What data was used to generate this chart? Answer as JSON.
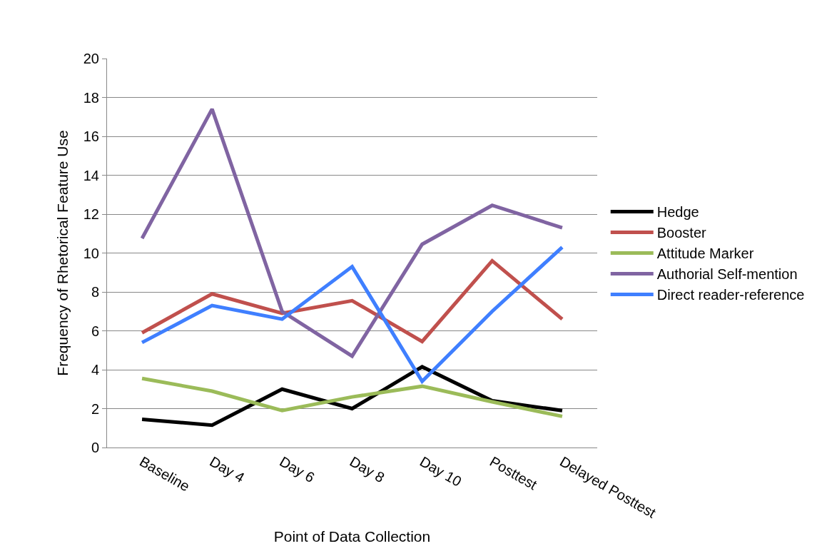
{
  "chart_data": {
    "type": "line",
    "xlabel": "Point of Data Collection",
    "ylabel": "Frequency of Rhetorical Feature Use",
    "categories": [
      "Baseline",
      "Day 4",
      "Day 6",
      "Day 8",
      "Day 10",
      "Posttest",
      "Delayed Posttest"
    ],
    "series": [
      {
        "name": "Hedge",
        "color": "#000000",
        "values": [
          1.45,
          1.15,
          3.0,
          2.0,
          4.15,
          2.4,
          1.9
        ]
      },
      {
        "name": "Booster",
        "color": "#c0504d",
        "values": [
          5.9,
          7.9,
          6.9,
          7.55,
          5.45,
          9.6,
          6.6
        ]
      },
      {
        "name": "Attitude Marker",
        "color": "#9bbb59",
        "values": [
          3.55,
          2.9,
          1.9,
          2.6,
          3.15,
          2.35,
          1.6
        ]
      },
      {
        "name": "Authorial Self-mention",
        "color": "#8064a2",
        "values": [
          10.75,
          17.4,
          7.0,
          4.7,
          10.45,
          12.45,
          11.3
        ]
      },
      {
        "name": "Direct reader-reference",
        "color": "#3f7fff",
        "values": [
          5.4,
          7.3,
          6.6,
          9.3,
          3.4,
          7.0,
          10.3
        ]
      }
    ],
    "ylim": [
      0,
      20
    ],
    "yticks": [
      0,
      2,
      4,
      6,
      8,
      10,
      12,
      14,
      16,
      18,
      20
    ],
    "grid": "y",
    "legend": "right",
    "marker": "none",
    "line_style": "solid"
  }
}
